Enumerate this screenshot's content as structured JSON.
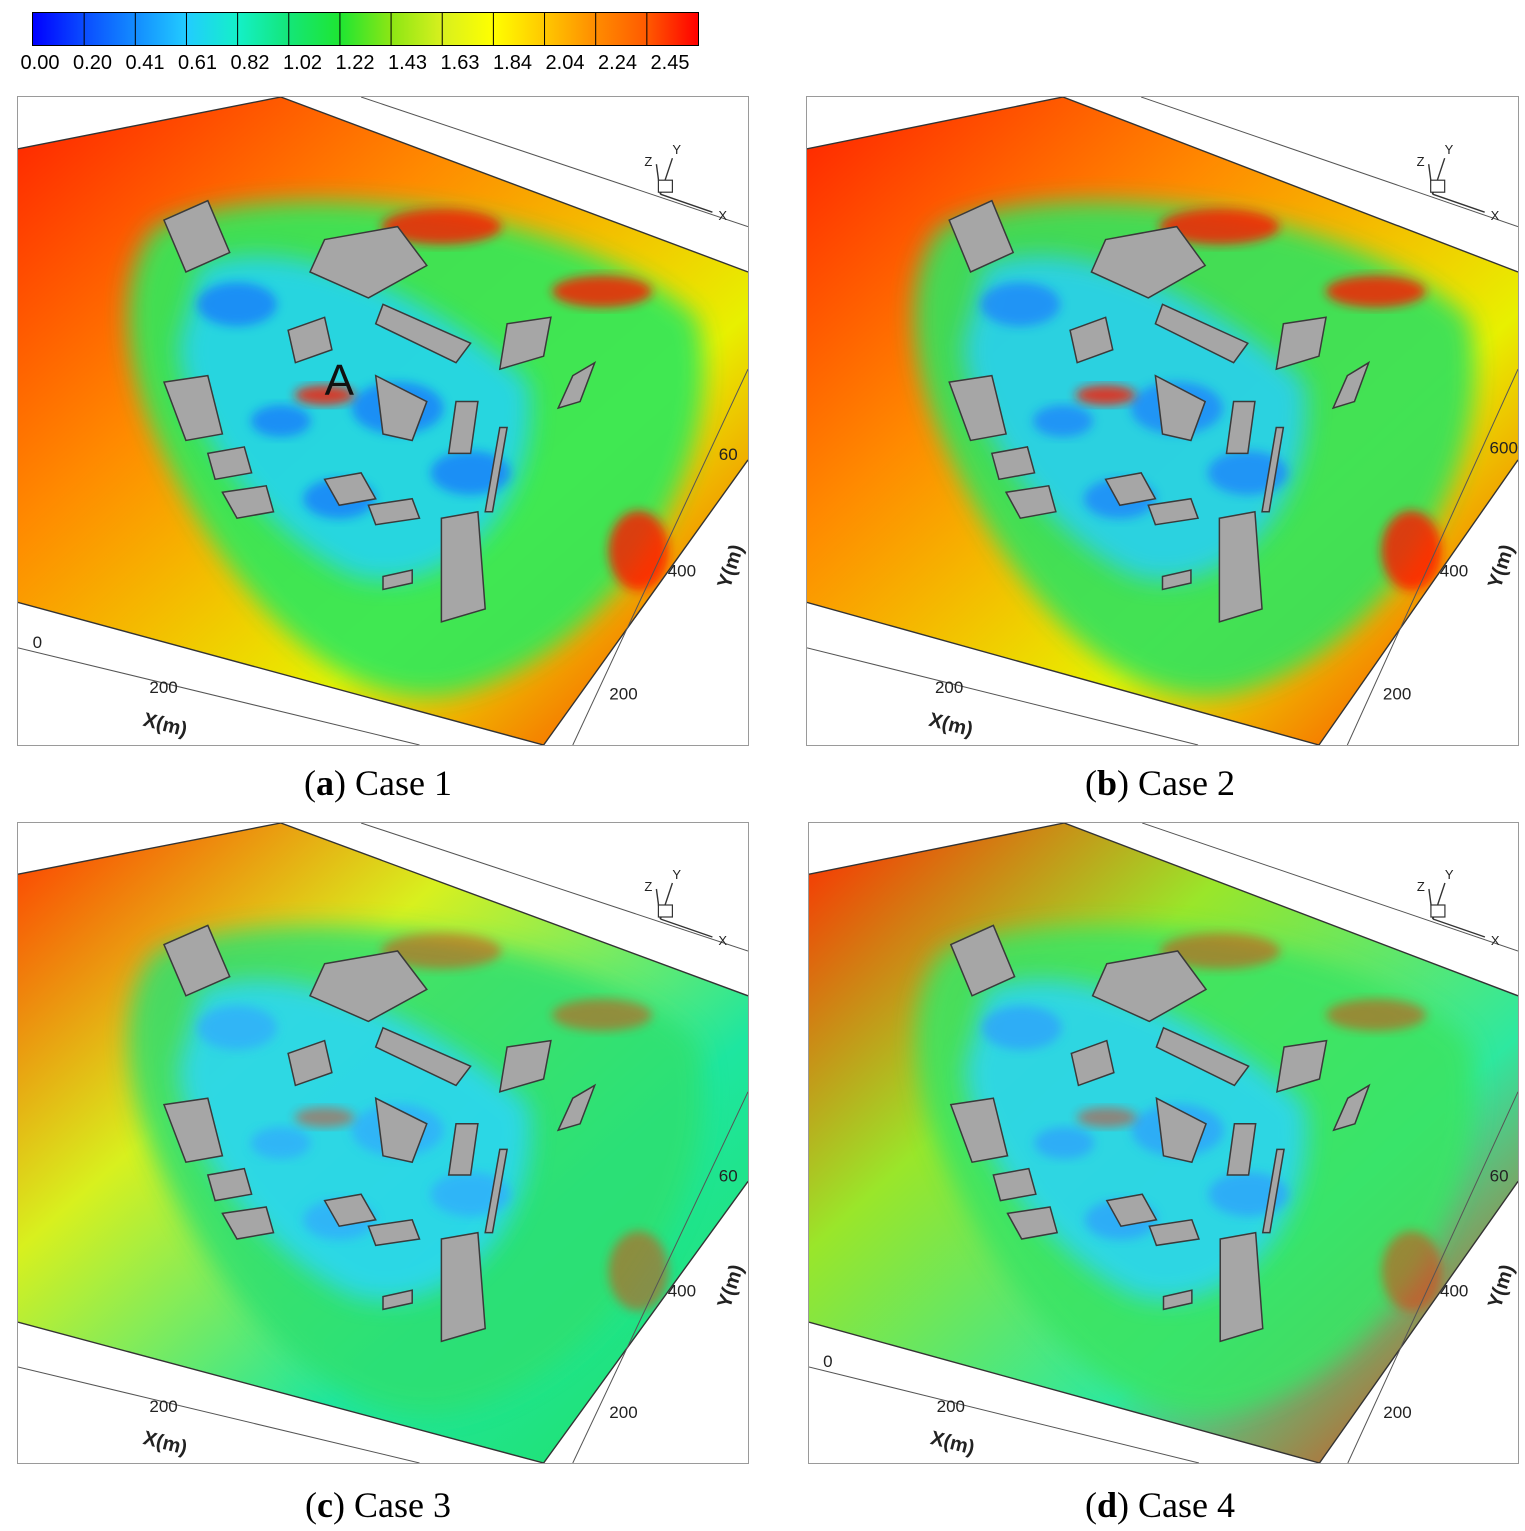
{
  "colorbar": {
    "ticks": [
      "0.00",
      "0.20",
      "0.41",
      "0.61",
      "0.82",
      "1.02",
      "1.22",
      "1.43",
      "1.63",
      "1.84",
      "2.04",
      "2.24",
      "2.45"
    ],
    "colors": [
      "#0000ff",
      "#0a4cff",
      "#138cff",
      "#22ccff",
      "#14f0c8",
      "#14e678",
      "#1ee632",
      "#8ce614",
      "#d8f01e",
      "#ffff00",
      "#ffc800",
      "#ff8c00",
      "#ff5a00",
      "#ff0000"
    ],
    "segments": 13
  },
  "chart_data": [
    {
      "type": "heatmap",
      "panel_label": "a",
      "case_label": "Case 1",
      "x_axis": {
        "label": "X(m)",
        "ticks": [
          "0",
          "200"
        ]
      },
      "y_axis": {
        "label": "Y(m)",
        "ticks": [
          "200",
          "400",
          "60"
        ]
      },
      "triad": [
        "Z",
        "Y",
        "X"
      ],
      "annotation": "A",
      "level": "high wake contrast"
    },
    {
      "type": "heatmap",
      "panel_label": "b",
      "case_label": "Case 2",
      "x_axis": {
        "label": "X(m)",
        "ticks": [
          "200"
        ]
      },
      "y_axis": {
        "label": "Y(m)",
        "ticks": [
          "200",
          "400",
          "600"
        ]
      },
      "triad": [
        "Z",
        "Y",
        "X"
      ],
      "annotation": "",
      "level": "high wake contrast"
    },
    {
      "type": "heatmap",
      "panel_label": "c",
      "case_label": "Case 3",
      "x_axis": {
        "label": "X(m)",
        "ticks": [
          "200"
        ]
      },
      "y_axis": {
        "label": "Y(m)",
        "ticks": [
          "200",
          "400",
          "60"
        ]
      },
      "triad": [
        "Z",
        "Y",
        "X"
      ],
      "annotation": "",
      "level": "low, mostly green/cyan"
    },
    {
      "type": "heatmap",
      "panel_label": "d",
      "case_label": "Case 4",
      "x_axis": {
        "label": "X(m)",
        "ticks": [
          "0",
          "200"
        ]
      },
      "y_axis": {
        "label": "Y(m)",
        "ticks": [
          "200",
          "400",
          "60"
        ]
      },
      "triad": [
        "Z",
        "Y",
        "X"
      ],
      "annotation": "",
      "level": "moderate"
    }
  ]
}
